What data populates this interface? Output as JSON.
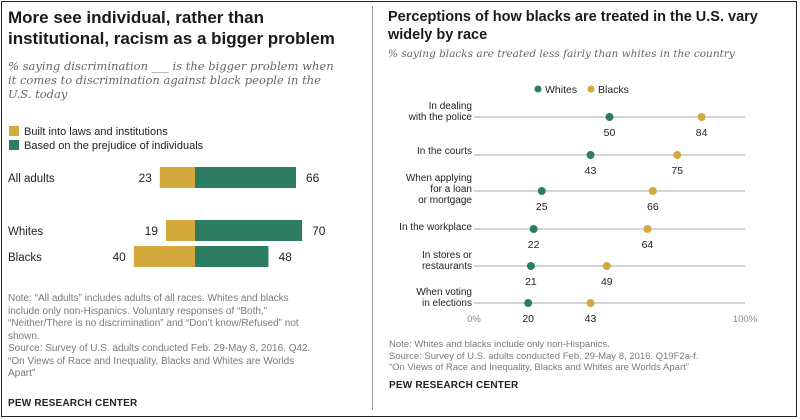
{
  "left": {
    "title_line1": "More see individual, rather than",
    "title_line2": "institutional, racism as a bigger problem",
    "subtitle_line1": "% saying discrimination ___ is the bigger problem when",
    "subtitle_line2": "it comes to discrimination against black people in the",
    "subtitle_line3": "U.S. today",
    "note_lines": [
      "Note: “All adults” includes adults of all races. Whites and blacks",
      "include only non-Hispanics. Voluntary responses of “Both,”",
      "“Neither/There is no discrimination” and “Don’t know/Refused” not",
      "shown.",
      "Source: Survey of U.S. adults conducted Feb. 29-May 8, 2016. Q42.",
      "“On Views of Race and Inequality, Blacks and Whites are Worlds",
      "Apart”"
    ],
    "brand": "PEW RESEARCH CENTER"
  },
  "right": {
    "title_line1": "Perceptions of how blacks are treated in the U.S. vary",
    "title_line2": "widely by race",
    "subtitle": "% saying blacks are treated less fairly than whites in the country",
    "note_lines": [
      "Note: Whites and blacks include only non-Hispanics.",
      "Source: Survey of U.S. adults conducted Feb. 29-May 8, 2016. Q19F2a-f.",
      "“On Views of Race and Inequality, Blacks and Whites are Worlds Apart”"
    ],
    "brand": "PEW RESEARCH CENTER"
  },
  "colors": {
    "gold": "#d2a93a",
    "green": "#2e7d63",
    "gridline": "#a9a9a9"
  },
  "chart_data": [
    {
      "type": "bar",
      "stacked": true,
      "title": "More see individual, rather than institutional, racism as a bigger problem",
      "legend": [
        "Built into laws and institutions",
        "Based on the prejudice of individuals"
      ],
      "categories": [
        "All adults",
        "Whites",
        "Blacks"
      ],
      "series": [
        {
          "name": "Built into laws and institutions",
          "values": [
            23,
            19,
            40
          ]
        },
        {
          "name": "Based on the prejudice of individuals",
          "values": [
            66,
            70,
            48
          ]
        }
      ]
    },
    {
      "type": "scatter",
      "title": "Perceptions of how blacks are treated in the U.S. vary widely by race",
      "legend": [
        "Whites",
        "Blacks"
      ],
      "categories": [
        [
          "In dealing",
          "with the police"
        ],
        [
          "In the courts"
        ],
        [
          "When applying",
          "for a loan",
          "or mortgage"
        ],
        [
          "In the workplace"
        ],
        [
          "In stores or",
          "restaurants"
        ],
        [
          "When voting",
          "in elections"
        ]
      ],
      "series": [
        {
          "name": "Whites",
          "values": [
            50,
            43,
            25,
            22,
            21,
            20
          ]
        },
        {
          "name": "Blacks",
          "values": [
            84,
            75,
            66,
            64,
            49,
            43
          ]
        }
      ],
      "xlim": [
        0,
        100
      ],
      "axis_labels": [
        "0%",
        "100%"
      ]
    }
  ]
}
